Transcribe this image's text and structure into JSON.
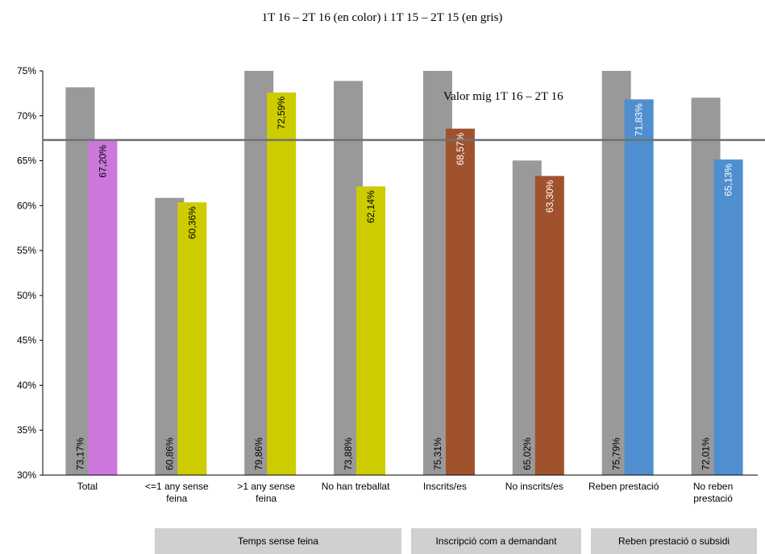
{
  "chart_data": {
    "type": "bar",
    "title": "1T 16 – 2T 16 (en color) i 1T 15 – 2T 15 (en gris)",
    "categories": [
      "Total",
      "<=1 any sense feina",
      ">1 any sense feina",
      "No han treballat",
      "Inscrits/es",
      "No inscrits/es",
      "Reben prestació",
      "No reben prestació"
    ],
    "series": [
      {
        "color": "#999999",
        "values": [
          73.17,
          60.86,
          79.86,
          73.88,
          75.31,
          65.02,
          75.79,
          72.01
        ],
        "value_labels": [
          "73,17%",
          "60,86%",
          "79,86%",
          "73,88%",
          "75,31%",
          "65,02%",
          "75,79%",
          "72,01%"
        ]
      },
      {
        "colors": [
          "#cc77dd",
          "#cccc00",
          "#cccc00",
          "#cccc00",
          "#a0522d",
          "#a0522d",
          "#4f8fcf",
          "#4f8fcf"
        ],
        "label_colors": [
          "#000000",
          "#000000",
          "#000000",
          "#000000",
          "#ffffff",
          "#ffffff",
          "#ffffff",
          "#ffffff"
        ],
        "values": [
          67.2,
          60.36,
          72.59,
          62.14,
          68.57,
          63.3,
          71.83,
          65.13
        ],
        "value_labels": [
          "67,20%",
          "60,36%",
          "72,59%",
          "62,14%",
          "68,57%",
          "63,30%",
          "71,83%",
          "65,13%"
        ]
      }
    ],
    "mean": 67.3,
    "mean_label": "Valor mig 1T 16 – 2T 16",
    "mean_color": "#707070",
    "groups": [
      "Temps sense feina",
      "Inscripció com a demandant",
      "Reben prestació o subsidi"
    ],
    "ylim": [
      30,
      75
    ],
    "yticks": [
      {
        "value": 30,
        "label": "30%"
      },
      {
        "value": 35,
        "label": "35%"
      },
      {
        "value": 40,
        "label": "40%"
      },
      {
        "value": 45,
        "label": "45%"
      },
      {
        "value": 50,
        "label": "50%"
      },
      {
        "value": 55,
        "label": "55%"
      },
      {
        "value": 60,
        "label": "60%"
      },
      {
        "value": 65,
        "label": "65%"
      },
      {
        "value": 70,
        "label": "70%"
      },
      {
        "value": 75,
        "label": "75%"
      }
    ],
    "grid": false
  }
}
